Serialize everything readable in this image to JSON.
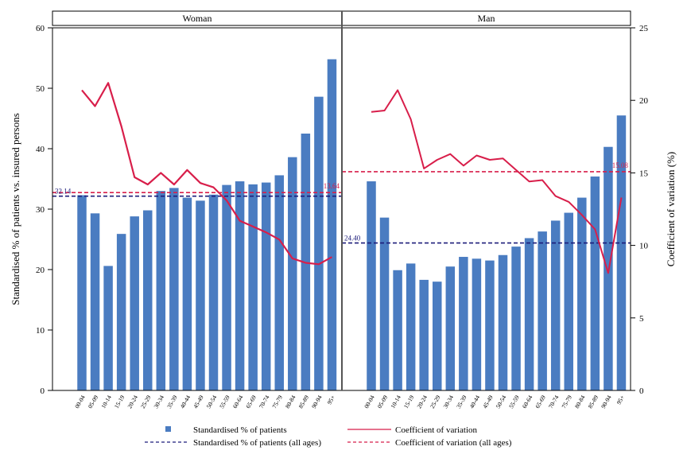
{
  "chart_data": {
    "type": "bar",
    "categories": [
      "00-04",
      "05-09",
      "10-14",
      "15-19",
      "20-24",
      "25-29",
      "30-34",
      "35-39",
      "40-44",
      "45-49",
      "50-54",
      "55-59",
      "60-64",
      "65-69",
      "70-74",
      "75-79",
      "80-84",
      "85-89",
      "90-94",
      "95+"
    ],
    "ylabel_left": "Standardised % of patients vs. insured persons",
    "ylabel_right": "Coefficient of variation (%)",
    "ylim_left": [
      0,
      60
    ],
    "ylim_right": [
      0,
      25
    ],
    "yticks_left": [
      0,
      10,
      20,
      30,
      40,
      50,
      60
    ],
    "yticks_right": [
      0,
      5,
      10,
      15,
      20,
      25
    ],
    "grid": false,
    "legend_position": "bottom",
    "colors": {
      "bar": "#4a7cc1",
      "cv_line": "#d81e4a",
      "mean_bar_line": "#1c1c7a",
      "mean_cv_line": "#d81e4a"
    },
    "legend": [
      {
        "label": "Standardised % of patients",
        "kind": "bar"
      },
      {
        "label": "Coefficient of variation",
        "kind": "line"
      },
      {
        "label": "Standardised % of patients (all ages)",
        "kind": "dash-blue"
      },
      {
        "label": "Coefficient of variation (all ages)",
        "kind": "dash-red"
      }
    ],
    "panels": [
      {
        "title": "Woman",
        "bars": [
          32.3,
          29.3,
          20.6,
          25.9,
          28.8,
          29.8,
          33.0,
          33.5,
          31.9,
          31.4,
          32.4,
          34.0,
          34.6,
          34.1,
          34.4,
          35.6,
          38.6,
          42.5,
          48.6,
          54.8
        ],
        "cv": [
          20.7,
          19.6,
          21.2,
          18.2,
          14.7,
          14.2,
          15.0,
          14.2,
          15.2,
          14.3,
          14.0,
          13.1,
          11.7,
          11.3,
          10.9,
          10.4,
          9.1,
          8.8,
          8.7,
          9.2
        ],
        "mean_bar": 32.14,
        "mean_bar_label": "32.14",
        "mean_cv": 13.64,
        "mean_cv_label": "13.64"
      },
      {
        "title": "Man",
        "bars": [
          34.6,
          28.6,
          19.9,
          21.0,
          18.3,
          18.0,
          20.5,
          22.1,
          21.8,
          21.5,
          22.4,
          23.8,
          25.2,
          26.3,
          28.1,
          29.4,
          31.9,
          35.4,
          40.3,
          45.5
        ],
        "cv": [
          19.2,
          19.3,
          20.7,
          18.7,
          15.3,
          15.9,
          16.3,
          15.5,
          16.2,
          15.9,
          16.0,
          15.2,
          14.4,
          14.5,
          13.4,
          13.0,
          12.1,
          11.1,
          8.1,
          13.3
        ],
        "mean_bar": 24.4,
        "mean_bar_label": "24.40",
        "mean_cv": 15.08,
        "mean_cv_label": "15.08"
      }
    ]
  }
}
